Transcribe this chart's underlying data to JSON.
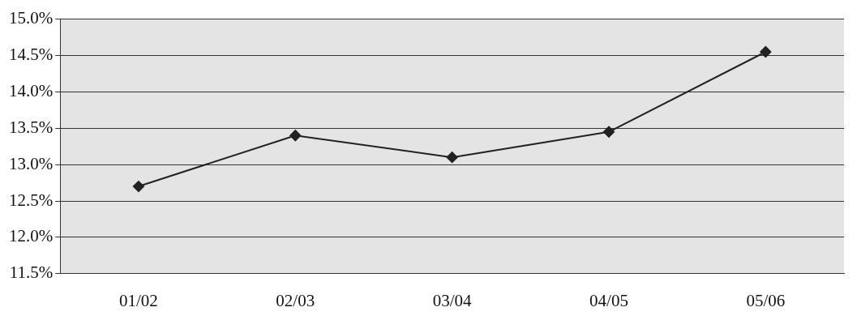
{
  "chart_data": {
    "type": "line",
    "categories": [
      "01/02",
      "02/03",
      "03/04",
      "04/05",
      "05/06"
    ],
    "series": [
      {
        "color": "#222222",
        "values": [
          12.7,
          13.4,
          13.1,
          13.45,
          14.55
        ]
      }
    ],
    "ylim": [
      11.5,
      15.0
    ],
    "yticks": [
      {
        "value": 11.5,
        "label": "11.5%"
      },
      {
        "value": 12.0,
        "label": "12.0%"
      },
      {
        "value": 12.5,
        "label": "12.5%"
      },
      {
        "value": 13.0,
        "label": "13.0%"
      },
      {
        "value": 13.5,
        "label": "13.5%"
      },
      {
        "value": 14.0,
        "label": "14.0%"
      },
      {
        "value": 14.5,
        "label": "14.5%"
      },
      {
        "value": 15.0,
        "label": "15.0%"
      }
    ],
    "grid": "y",
    "legend": false,
    "marker": "diamond",
    "line_style": "solid"
  }
}
